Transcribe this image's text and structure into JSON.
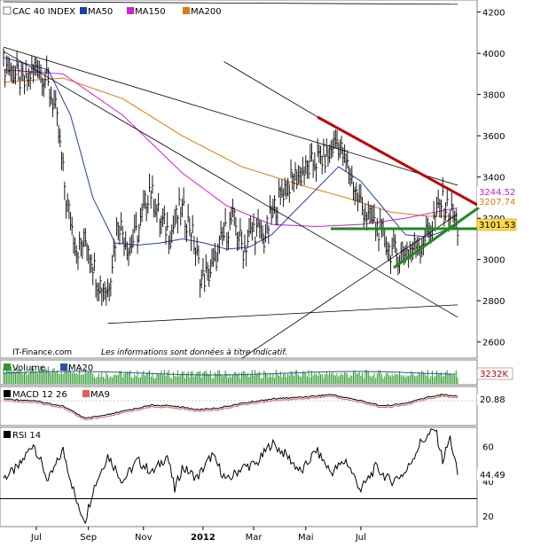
{
  "colors": {
    "price": "#1a1a1a",
    "ma50": "#1f3fa8",
    "ma150": "#d020d0",
    "ma200": "#e07a10",
    "trend_black": "#000000",
    "resistance": "#c00000",
    "support": "#1f8a1f",
    "volume": "#2e9a2e",
    "volume_ma": "#3050a0",
    "macd": "#000000",
    "macd_signal": "#e06060",
    "rsi": "#000000"
  },
  "chart_data": [
    {
      "type": "line",
      "panel": "price",
      "title": "CAC 40 INDEX",
      "legend": [
        "MA50",
        "MA150",
        "MA200"
      ],
      "y_ticks": [
        2600,
        2800,
        3000,
        3200,
        3400,
        3600,
        3800,
        4000,
        4200
      ],
      "ylim": [
        2530,
        4250
      ],
      "x_labels": [
        "Jul",
        "Sep",
        "Nov",
        "2012",
        "Mar",
        "Mai",
        "Jul"
      ],
      "price_labels": [
        "3244.52",
        "3207.74",
        "3101.53"
      ],
      "close_approx": [
        [
          0,
          3950
        ],
        [
          7,
          3900
        ],
        [
          14,
          3850
        ],
        [
          22,
          3950
        ],
        [
          28,
          3880
        ],
        [
          35,
          3720
        ],
        [
          42,
          3300
        ],
        [
          49,
          3050
        ],
        [
          56,
          3100
        ],
        [
          63,
          2900
        ],
        [
          70,
          2850
        ],
        [
          77,
          3200
        ],
        [
          84,
          3050
        ],
        [
          91,
          3150
        ],
        [
          98,
          3350
        ],
        [
          105,
          3200
        ],
        [
          112,
          3120
        ],
        [
          119,
          3250
        ],
        [
          126,
          3150
        ],
        [
          133,
          2900
        ],
        [
          140,
          2950
        ],
        [
          147,
          3100
        ],
        [
          154,
          3200
        ],
        [
          161,
          3050
        ],
        [
          168,
          3150
        ],
        [
          175,
          3100
        ],
        [
          182,
          3250
        ],
        [
          189,
          3350
        ],
        [
          196,
          3400
        ],
        [
          203,
          3430
        ],
        [
          210,
          3480
        ],
        [
          217,
          3500
        ],
        [
          224,
          3580
        ],
        [
          231,
          3450
        ],
        [
          238,
          3300
        ],
        [
          245,
          3200
        ],
        [
          252,
          3150
        ],
        [
          259,
          3050
        ],
        [
          266,
          3020
        ],
        [
          273,
          3050
        ],
        [
          280,
          3080
        ],
        [
          287,
          3150
        ],
        [
          294,
          3280
        ],
        [
          301,
          3220
        ],
        [
          305,
          3150
        ]
      ],
      "ma50_approx": [
        [
          0,
          3980
        ],
        [
          30,
          3920
        ],
        [
          45,
          3700
        ],
        [
          60,
          3300
        ],
        [
          75,
          3080
        ],
        [
          90,
          3070
        ],
        [
          105,
          3080
        ],
        [
          120,
          3100
        ],
        [
          135,
          3080
        ],
        [
          150,
          3050
        ],
        [
          165,
          3060
        ],
        [
          180,
          3120
        ],
        [
          195,
          3230
        ],
        [
          210,
          3340
        ],
        [
          225,
          3450
        ],
        [
          240,
          3380
        ],
        [
          255,
          3250
        ],
        [
          270,
          3120
        ],
        [
          285,
          3110
        ],
        [
          300,
          3150
        ],
        [
          305,
          3170
        ]
      ],
      "ma150_approx": [
        [
          0,
          3920
        ],
        [
          40,
          3900
        ],
        [
          80,
          3700
        ],
        [
          120,
          3420
        ],
        [
          150,
          3260
        ],
        [
          180,
          3170
        ],
        [
          210,
          3160
        ],
        [
          240,
          3170
        ],
        [
          270,
          3200
        ],
        [
          290,
          3230
        ],
        [
          305,
          3250
        ]
      ],
      "ma200_approx": [
        [
          0,
          3860
        ],
        [
          40,
          3880
        ],
        [
          80,
          3780
        ],
        [
          120,
          3600
        ],
        [
          160,
          3450
        ],
        [
          200,
          3360
        ],
        [
          230,
          3300
        ],
        [
          260,
          3230
        ],
        [
          285,
          3210
        ],
        [
          305,
          3210
        ]
      ],
      "annotations": [
        "IT-Finance.com",
        "Les informations sont données à titre indicatif."
      ]
    },
    {
      "type": "bar",
      "panel": "volume",
      "legend": [
        "Volume",
        "MA20"
      ],
      "last_value_label": "3232K"
    },
    {
      "type": "line",
      "panel": "macd",
      "legend": [
        "MACD 12 26",
        "MA9"
      ],
      "last_value_label": "20.88"
    },
    {
      "type": "line",
      "panel": "rsi",
      "legend": [
        "RSI 14"
      ],
      "y_ticks": [
        20,
        40,
        60
      ],
      "ylim": [
        15,
        70
      ],
      "last_value_label": "44.49",
      "rsi_approx": [
        [
          0,
          42
        ],
        [
          10,
          48
        ],
        [
          20,
          62
        ],
        [
          30,
          40
        ],
        [
          40,
          58
        ],
        [
          50,
          25
        ],
        [
          55,
          18
        ],
        [
          60,
          35
        ],
        [
          70,
          55
        ],
        [
          80,
          40
        ],
        [
          90,
          52
        ],
        [
          100,
          45
        ],
        [
          110,
          55
        ],
        [
          115,
          35
        ],
        [
          120,
          48
        ],
        [
          130,
          42
        ],
        [
          140,
          55
        ],
        [
          150,
          40
        ],
        [
          160,
          48
        ],
        [
          170,
          50
        ],
        [
          180,
          62
        ],
        [
          190,
          55
        ],
        [
          200,
          45
        ],
        [
          210,
          58
        ],
        [
          220,
          45
        ],
        [
          230,
          52
        ],
        [
          240,
          35
        ],
        [
          250,
          48
        ],
        [
          260,
          40
        ],
        [
          270,
          45
        ],
        [
          280,
          62
        ],
        [
          290,
          70
        ],
        [
          295,
          52
        ],
        [
          300,
          65
        ],
        [
          305,
          44
        ]
      ]
    }
  ]
}
